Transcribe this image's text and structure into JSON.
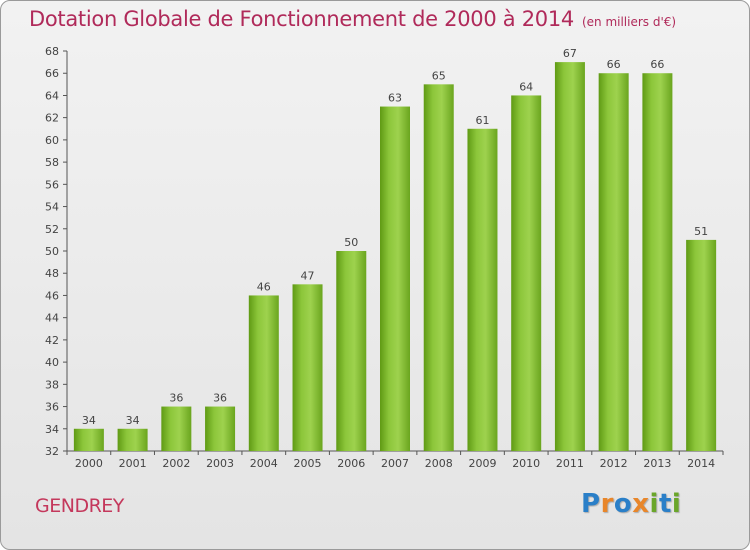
{
  "chart_data": {
    "type": "bar",
    "title": "Dotation Globale de Fonctionnement de 2000 à 2014",
    "subtitle": "(en milliers d'€)",
    "categories": [
      "2000",
      "2001",
      "2002",
      "2003",
      "2004",
      "2005",
      "2006",
      "2007",
      "2008",
      "2009",
      "2010",
      "2011",
      "2012",
      "2013",
      "2014"
    ],
    "values": [
      34,
      34,
      36,
      36,
      46,
      47,
      50,
      63,
      65,
      61,
      64,
      67,
      66,
      66,
      51
    ],
    "ylim": [
      32,
      68
    ],
    "yticks": [
      32,
      34,
      36,
      38,
      40,
      42,
      44,
      46,
      48,
      50,
      52,
      54,
      56,
      58,
      60,
      62,
      64,
      66,
      68
    ],
    "grid": false,
    "bar_color": "#7ab52a"
  },
  "footer": {
    "commune": "GENDREY",
    "logo_letters": [
      {
        "ch": "P",
        "color": "#2a7fc8"
      },
      {
        "ch": "r",
        "color": "#e8862a"
      },
      {
        "ch": "o",
        "color": "#2a7fc8"
      },
      {
        "ch": "x",
        "color": "#e8862a"
      },
      {
        "ch": "i",
        "color": "#6aa62a"
      },
      {
        "ch": "t",
        "color": "#2a7fc8"
      },
      {
        "ch": "i",
        "color": "#6aa62a"
      }
    ]
  }
}
